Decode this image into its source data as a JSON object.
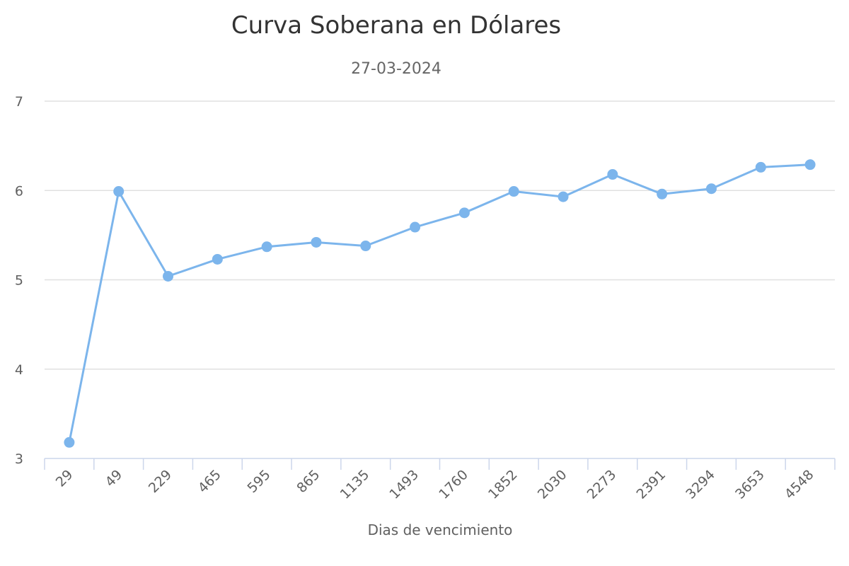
{
  "chart_data": {
    "type": "line",
    "title": "Curva Soberana en Dólares",
    "subtitle": "27-03-2024",
    "xlabel": "Dias de vencimiento",
    "ylabel": "",
    "categories": [
      "29",
      "49",
      "229",
      "465",
      "595",
      "865",
      "1135",
      "1493",
      "1760",
      "1852",
      "2030",
      "2273",
      "2391",
      "3294",
      "3653",
      "4548"
    ],
    "ylim": [
      3,
      7
    ],
    "yticks": [
      "3",
      "4",
      "5",
      "6",
      "7"
    ],
    "grid": true,
    "legend": "none",
    "series": [
      {
        "color": "#7cb5ec",
        "values": [
          3.18,
          5.99,
          5.04,
          5.23,
          5.37,
          5.42,
          5.38,
          5.59,
          5.75,
          5.99,
          5.93,
          6.18,
          5.96,
          6.02,
          6.26,
          6.29
        ]
      }
    ]
  }
}
